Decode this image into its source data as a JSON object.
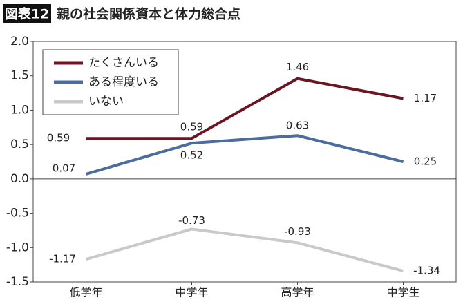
{
  "chart_data": {
    "type": "line",
    "figure_label": "図表12",
    "title": "親の社会関係資本と体力総合点",
    "categories": [
      "低学年",
      "中学年",
      "高学年",
      "中学生"
    ],
    "series": [
      {
        "name": "たくさんいる",
        "color": "#6b1522",
        "values": [
          0.59,
          0.59,
          1.46,
          1.17
        ]
      },
      {
        "name": "ある程度いる",
        "color": "#4b6c9c",
        "values": [
          0.07,
          0.52,
          0.63,
          0.25
        ]
      },
      {
        "name": "いない",
        "color": "#c9c9c9",
        "values": [
          -1.17,
          -0.73,
          -0.93,
          -1.34
        ]
      }
    ],
    "ylim": [
      -1.5,
      2.0
    ],
    "yticks": [
      {
        "value": 2.0,
        "label": "2.0"
      },
      1.5,
      {
        "value": 1.0,
        "label": "1.0"
      },
      0.5,
      {
        "value": 0.0,
        "label": "0.0"
      },
      -0.5,
      {
        "value": -1.0,
        "label": "-1.0"
      },
      -1.5
    ],
    "legend": "upper-left"
  }
}
